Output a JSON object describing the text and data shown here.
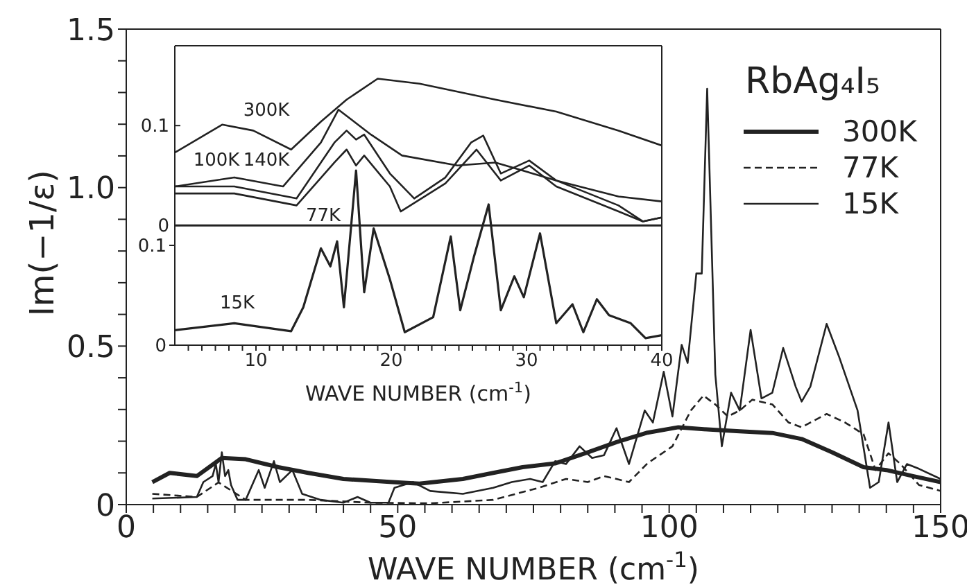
{
  "chart_data": [
    {
      "type": "line",
      "xlabel": "WAVE NUMBER (cm$^{-1}$)",
      "ylabel": "Im(−1/ε)",
      "legend_title": "RbAg₄I₅",
      "legend": "top right",
      "xlim": [
        0,
        150
      ],
      "ylim": [
        0,
        1.5
      ],
      "xticks": [
        0,
        {
          "value": 5,
          "label": null
        },
        {
          "value": 10,
          "label": null
        },
        {
          "value": 15,
          "label": null
        },
        {
          "value": 20,
          "label": null
        },
        {
          "value": 25,
          "label": null
        },
        {
          "value": 30,
          "label": null
        },
        {
          "value": 35,
          "label": null
        },
        {
          "value": 40,
          "label": null
        },
        {
          "value": 45,
          "label": null
        },
        50,
        {
          "value": 55,
          "label": null
        },
        {
          "value": 60,
          "label": null
        },
        {
          "value": 65,
          "label": null
        },
        {
          "value": 70,
          "label": null
        },
        {
          "value": 75,
          "label": null
        },
        {
          "value": 80,
          "label": null
        },
        {
          "value": 85,
          "label": null
        },
        {
          "value": 90,
          "label": null
        },
        {
          "value": 95,
          "label": null
        },
        100,
        {
          "value": 105,
          "label": null
        },
        {
          "value": 110,
          "label": null
        },
        {
          "value": 115,
          "label": null
        },
        {
          "value": 120,
          "label": null
        },
        {
          "value": 125,
          "label": null
        },
        {
          "value": 130,
          "label": null
        },
        {
          "value": 135,
          "label": null
        },
        {
          "value": 140,
          "label": null
        },
        {
          "value": 145,
          "label": null
        },
        150
      ],
      "yticks": [
        0,
        {
          "value": 0.1,
          "label": null
        },
        {
          "value": 0.2,
          "label": null
        },
        {
          "value": 0.3,
          "label": null
        },
        {
          "value": 0.4,
          "label": null
        },
        0.5,
        {
          "value": 0.6,
          "label": null
        },
        {
          "value": 0.7,
          "label": null
        },
        {
          "value": 0.8,
          "label": null
        },
        {
          "value": 0.9,
          "label": null
        },
        {
          "value": 1,
          "label": "1.0"
        },
        {
          "value": 1.1,
          "label": null
        },
        {
          "value": 1.2,
          "label": null
        },
        {
          "value": 1.3,
          "label": null
        },
        {
          "value": 1.4,
          "label": null
        },
        1.5
      ],
      "series": [
        {
          "name": "300K",
          "color": "#222222",
          "x": [
            4.8,
            8,
            13,
            17.6,
            22,
            28,
            33.5,
            40,
            49,
            54,
            62,
            67.6,
            73,
            79,
            85,
            90.3,
            96,
            101.7,
            107,
            113,
            119,
            124.4,
            130,
            135.8,
            140,
            144.9,
            150
          ],
          "values": [
            0.071,
            0.1,
            0.09,
            0.147,
            0.143,
            0.118,
            0.1,
            0.081,
            0.071,
            0.066,
            0.081,
            0.1,
            0.118,
            0.13,
            0.165,
            0.197,
            0.227,
            0.244,
            0.237,
            0.231,
            0.226,
            0.207,
            0.165,
            0.118,
            0.109,
            0.09,
            0.071
          ]
        },
        {
          "name": "77K",
          "color": "#222222",
          "line_style": "dashed",
          "x": [
            4.8,
            13,
            17,
            22,
            33.5,
            45,
            56,
            67.6,
            76,
            81,
            85,
            88,
            90.3,
            92.6,
            96,
            100.6,
            104,
            106.3,
            108.5,
            110.8,
            113,
            115.3,
            119,
            122,
            124.4,
            129,
            132.4,
            135.8,
            138,
            140.4,
            142.6,
            146,
            150
          ],
          "values": [
            0.034,
            0.024,
            0.07,
            0.015,
            0.015,
            0.006,
            0.004,
            0.015,
            0.053,
            0.081,
            0.071,
            0.09,
            0.081,
            0.071,
            0.13,
            0.184,
            0.297,
            0.344,
            0.316,
            0.278,
            0.297,
            0.331,
            0.316,
            0.259,
            0.244,
            0.286,
            0.259,
            0.222,
            0.109,
            0.162,
            0.128,
            0.062,
            0.043
          ]
        },
        {
          "name": "15K",
          "color": "#222222",
          "x": [
            4.8,
            13,
            14.2,
            15.9,
            16.5,
            17,
            17.6,
            18.2,
            18.8,
            19.3,
            20.5,
            22,
            24.4,
            25.5,
            27.2,
            28.3,
            30.6,
            32.4,
            35.8,
            40,
            42.6,
            45,
            48.3,
            49.4,
            52.8,
            56,
            62,
            67.6,
            71,
            74.4,
            76.7,
            79,
            81,
            83.5,
            85.8,
            88,
            90.3,
            92.6,
            95.5,
            97,
            99,
            100.6,
            102.3,
            103.4,
            105,
            106,
            107,
            108.5,
            109.7,
            111.4,
            113,
            115,
            117,
            119,
            121,
            123.3,
            124.4,
            126,
            129,
            131.3,
            134.7,
            137,
            138.6,
            140.4,
            142,
            143.8,
            146,
            150
          ],
          "values": [
            0.019,
            0.024,
            0.071,
            0.09,
            0.128,
            0.071,
            0.165,
            0.09,
            0.109,
            0.062,
            0.015,
            0.015,
            0.109,
            0.053,
            0.137,
            0.071,
            0.109,
            0.034,
            0.015,
            0.006,
            0.024,
            0.006,
            0.006,
            0.053,
            0.071,
            0.043,
            0.034,
            0.053,
            0.071,
            0.081,
            0.071,
            0.137,
            0.128,
            0.184,
            0.147,
            0.156,
            0.241,
            0.128,
            0.297,
            0.259,
            0.419,
            0.278,
            0.504,
            0.447,
            0.729,
            0.729,
            1.312,
            0.41,
            0.184,
            0.353,
            0.297,
            0.551,
            0.335,
            0.353,
            0.494,
            0.372,
            0.325,
            0.372,
            0.57,
            0.466,
            0.297,
            0.053,
            0.071,
            0.259,
            0.071,
            0.128,
            0.113,
            0.081
          ]
        }
      ]
    },
    {
      "type": "line",
      "xlabel": "WAVE NUMBER (cm$^{-1}$)",
      "xlim": [
        4,
        40
      ],
      "ylim": [
        0,
        0.3
      ],
      "y2lim": [
        -0.12,
        0.18
      ],
      "xticks": [
        {
          "value": 5,
          "label": null
        },
        {
          "value": 6,
          "label": null
        },
        {
          "value": 7,
          "label": null
        },
        {
          "value": 8,
          "label": null
        },
        {
          "value": 9,
          "label": null
        },
        10,
        {
          "value": 11,
          "label": null
        },
        {
          "value": 12,
          "label": null
        },
        {
          "value": 13,
          "label": null
        },
        {
          "value": 14,
          "label": null
        },
        {
          "value": 15,
          "label": null
        },
        {
          "value": 16,
          "label": null
        },
        {
          "value": 17,
          "label": null
        },
        {
          "value": 18,
          "label": null
        },
        {
          "value": 19,
          "label": null
        },
        20,
        {
          "value": 21,
          "label": null
        },
        {
          "value": 22,
          "label": null
        },
        {
          "value": 23,
          "label": null
        },
        {
          "value": 24,
          "label": null
        },
        {
          "value": 25,
          "label": null
        },
        {
          "value": 26,
          "label": null
        },
        {
          "value": 27,
          "label": null
        },
        {
          "value": 28,
          "label": null
        },
        {
          "value": 29,
          "label": null
        },
        30,
        {
          "value": 31,
          "label": null
        },
        {
          "value": 32,
          "label": null
        },
        {
          "value": 33,
          "label": null
        },
        {
          "value": 34,
          "label": null
        },
        {
          "value": 35,
          "label": null
        },
        {
          "value": 36,
          "label": null
        },
        {
          "value": 37,
          "label": null
        },
        {
          "value": 38,
          "label": null
        },
        {
          "value": 39,
          "label": null
        },
        40
      ],
      "yticks": [
        0,
        0.1
      ],
      "y2ticks": [
        0,
        0.1
      ],
      "ref_lines": [
        {
          "axis": "y2",
          "value": 0,
          "color": "#222222"
        }
      ],
      "annotations": [
        "300K",
        "140K",
        "100K",
        "77K",
        "15K"
      ],
      "series": [
        {
          "color": "#222222",
          "axis": "y2",
          "x": [
            4,
            7.5,
            9.8,
            12.6,
            14.8,
            16.7,
            19,
            22.1,
            27.7,
            32.2,
            36.8,
            40
          ],
          "values": [
            0.073,
            0.101,
            0.095,
            0.076,
            0.104,
            0.126,
            0.147,
            0.142,
            0.126,
            0.114,
            0.095,
            0.08
          ]
        },
        {
          "color": "#222222",
          "axis": "y2",
          "x": [
            4,
            8.4,
            12,
            14.8,
            16.1,
            18.5,
            20.8,
            24.9,
            27.7,
            32.2,
            36.8,
            40
          ],
          "values": [
            0.039,
            0.048,
            0.039,
            0.083,
            0.116,
            0.091,
            0.07,
            0.06,
            0.063,
            0.045,
            0.029,
            0.024
          ]
        },
        {
          "color": "#222222",
          "axis": "y2",
          "x": [
            4,
            8.4,
            13,
            15.8,
            16.7,
            17.4,
            18,
            19.9,
            21.7,
            24,
            25.9,
            26.8,
            28.1,
            30.2,
            32.2,
            36.8,
            38.6,
            40
          ],
          "values": [
            0.039,
            0.039,
            0.027,
            0.083,
            0.095,
            0.086,
            0.091,
            0.052,
            0.027,
            0.048,
            0.083,
            0.09,
            0.052,
            0.065,
            0.045,
            0.02,
            0.004,
            0.008
          ]
        },
        {
          "color": "#222222",
          "axis": "y2",
          "x": [
            4,
            8.4,
            13,
            15.8,
            16.7,
            17.4,
            18,
            19.9,
            20.7,
            24,
            26.3,
            28.1,
            30.2,
            32.2,
            36.8,
            38.6,
            40
          ],
          "values": [
            0.032,
            0.032,
            0.02,
            0.063,
            0.076,
            0.06,
            0.07,
            0.039,
            0.014,
            0.042,
            0.076,
            0.045,
            0.06,
            0.039,
            0.014,
            0.004,
            0.008
          ]
        },
        {
          "color": "#222222",
          "x": [
            4,
            8.4,
            12.6,
            13.5,
            14.8,
            15.5,
            16,
            16.5,
            17.4,
            18,
            18.7,
            19.9,
            21,
            23.1,
            24.4,
            25.1,
            26.1,
            27.2,
            28.1,
            29.1,
            29.8,
            31,
            32.2,
            33.4,
            34.2,
            35.2,
            36.1,
            37.7,
            38.8,
            40
          ],
          "values": [
            0.015,
            0.022,
            0.014,
            0.038,
            0.097,
            0.079,
            0.104,
            0.038,
            0.175,
            0.053,
            0.117,
            0.066,
            0.013,
            0.028,
            0.109,
            0.035,
            0.088,
            0.141,
            0.035,
            0.069,
            0.048,
            0.112,
            0.022,
            0.041,
            0.013,
            0.046,
            0.03,
            0.022,
            0.007,
            0.01
          ]
        }
      ]
    }
  ]
}
